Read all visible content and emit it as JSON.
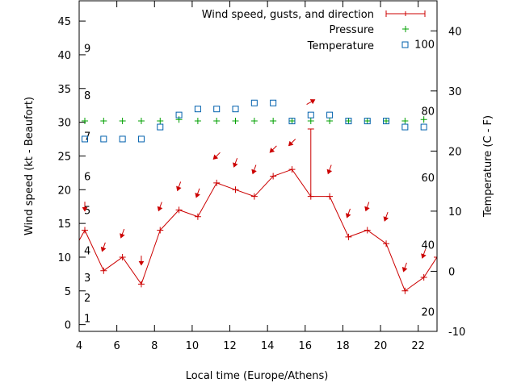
{
  "chart_data": {
    "type": "line",
    "xlabel": "Local time (Europe/Athens)",
    "ylabel": "Wind speed (kt - Beaufort)",
    "y2label": "Temperature (C - F)",
    "xlim": [
      4,
      23
    ],
    "ylim": [
      -1,
      48
    ],
    "y2lim": [
      -10,
      45
    ],
    "xticks": [
      4,
      6,
      8,
      10,
      12,
      14,
      16,
      18,
      20,
      22
    ],
    "yticks": [
      0,
      5,
      10,
      15,
      20,
      25,
      30,
      35,
      40,
      45
    ],
    "y2ticks": [
      -10,
      0,
      10,
      20,
      30,
      40
    ],
    "beaufort_labels": [
      {
        "label": "1",
        "y": 1
      },
      {
        "label": "2",
        "y": 4
      },
      {
        "label": "3",
        "y": 7
      },
      {
        "label": "4",
        "y": 11
      },
      {
        "label": "5",
        "y": 17
      },
      {
        "label": "6",
        "y": 22
      },
      {
        "label": "7",
        "y": 28
      },
      {
        "label": "8",
        "y": 34
      },
      {
        "label": "9",
        "y": 41
      }
    ],
    "fahrenheit_labels": [
      {
        "label": "20",
        "y2": -6.7
      },
      {
        "label": "40",
        "y2": 4.4
      },
      {
        "label": "60",
        "y2": 15.6
      },
      {
        "label": "80",
        "y2": 26.7
      },
      {
        "label": "100",
        "y2": 37.8
      }
    ],
    "legend_position": "top-right",
    "series": [
      {
        "name": "Wind speed, gusts, and direction",
        "color": "#cc0000",
        "kind": "line-with-gusts",
        "x": [
          3.5,
          4.3,
          5.3,
          6.3,
          7.3,
          8.3,
          9.3,
          10.3,
          11.3,
          12.3,
          13.3,
          14.3,
          15.3,
          16.3,
          17.3,
          18.3,
          19.3,
          20.3,
          21.3,
          22.3,
          23
        ],
        "values": [
          10,
          14,
          8,
          10,
          6,
          14,
          17,
          16,
          21,
          20,
          19,
          22,
          23,
          19,
          19,
          13,
          14,
          12,
          5,
          7,
          10
        ],
        "gusts": [
          {
            "x": 16.3,
            "low": 19,
            "high": 29
          }
        ]
      },
      {
        "name": "Pressure",
        "color": "#00a000",
        "kind": "plus",
        "x": [
          4.3,
          5.3,
          6.3,
          7.3,
          8.3,
          9.3,
          10.3,
          11.3,
          12.3,
          13.3,
          14.3,
          15.3,
          16.3,
          17.3,
          18.3,
          19.3,
          20.3,
          21.3,
          22.3
        ],
        "values": [
          30.2,
          30.2,
          30.2,
          30.2,
          30.2,
          30.4,
          30.2,
          30.2,
          30.2,
          30.2,
          30.2,
          30.2,
          30.2,
          30.2,
          30.2,
          30.2,
          30.2,
          30.2,
          30.4
        ]
      },
      {
        "name": "Temperature",
        "color": "#0060ad",
        "kind": "square",
        "x": [
          4.3,
          5.3,
          6.3,
          7.3,
          8.3,
          9.3,
          10.3,
          11.3,
          12.3,
          13.3,
          14.3,
          15.3,
          16.3,
          17.3,
          18.3,
          19.3,
          20.3,
          21.3,
          22.3
        ],
        "values": [
          22,
          22,
          22,
          22,
          24,
          26,
          27,
          27,
          27,
          28,
          28,
          25,
          26,
          26,
          25,
          25,
          25,
          24,
          24
        ]
      }
    ],
    "wind_direction_arrows": {
      "color": "#cc0000",
      "x": [
        4.3,
        5.3,
        6.3,
        7.3,
        8.3,
        9.3,
        10.3,
        11.3,
        12.3,
        13.3,
        14.3,
        15.3,
        16.3,
        17.3,
        18.3,
        19.3,
        20.3,
        21.3,
        22.3
      ],
      "y": [
        17.5,
        11.5,
        13.5,
        9.5,
        17.5,
        20.5,
        19.5,
        25,
        24,
        23,
        26,
        27,
        33,
        23,
        16.5,
        17.5,
        16,
        8.5,
        10.5
      ],
      "direction_deg": [
        0,
        20,
        20,
        0,
        20,
        20,
        20,
        45,
        20,
        20,
        45,
        45,
        240,
        20,
        20,
        20,
        20,
        20,
        20
      ]
    }
  }
}
